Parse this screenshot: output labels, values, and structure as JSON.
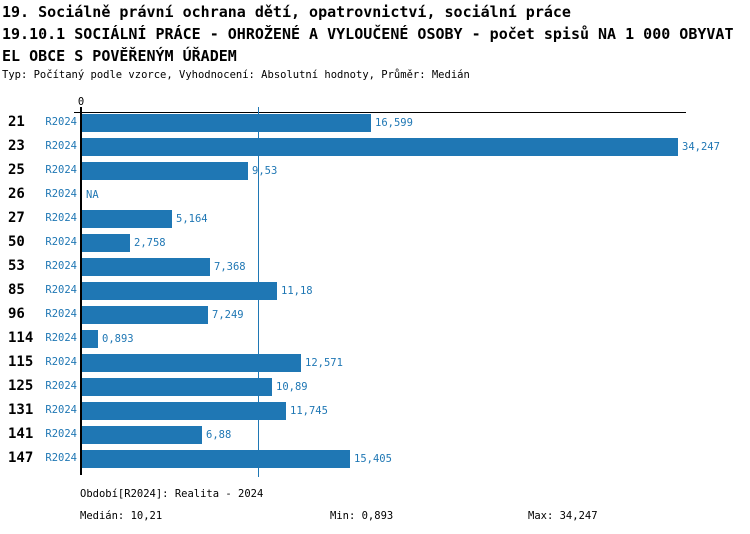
{
  "header": {
    "title_line1": "19. Sociálně právní ochrana dětí, opatrovnictví, sociální práce",
    "title_line2": "19.10.1 SOCIÁLNÍ PRÁCE - OHROŽENÉ A VYLOUČENÉ OSOBY - počet spisů NA 1 000 OBYVAT",
    "title_line3": "EL OBCE S POVĚŘENÝM ÚŘADEM",
    "subtitle": "Typ: Počítaný podle vzorce, Vyhodnocení: Absolutní hodnoty, Průměr: Medián"
  },
  "chart_data": {
    "type": "bar",
    "orientation": "horizontal",
    "title": "19.10.1 SOCIÁLNÍ PRÁCE - OHROŽENÉ A VYLOUČENÉ OSOBY - počet spisů NA 1 000 OBYVATEL OBCE S POVĚŘENÝM ÚŘADEM",
    "series_name": "R2024",
    "categories": [
      "21",
      "23",
      "25",
      "26",
      "27",
      "50",
      "53",
      "85",
      "96",
      "114",
      "115",
      "125",
      "131",
      "141",
      "147"
    ],
    "values": [
      16.599,
      34.247,
      9.53,
      null,
      5.164,
      2.758,
      7.368,
      11.18,
      7.249,
      0.893,
      12.571,
      10.89,
      11.745,
      6.88,
      15.405
    ],
    "value_labels": [
      "16,599",
      "34,247",
      "9,53",
      "NA",
      "5,164",
      "2,758",
      "7,368",
      "11,18",
      "7,249",
      "0,893",
      "12,571",
      "10,89",
      "11,745",
      "6,88",
      "15,405"
    ],
    "na_text": "NA",
    "x_axis": {
      "zero_label": "0",
      "min": 0,
      "max": 34.7,
      "grid": false
    },
    "median_reference": 10.21,
    "legend_position": "none",
    "colors": {
      "bar": "#1f77b4",
      "value_text": "#1f77b4",
      "category_text": "#000000",
      "median_line": "#1f77b4",
      "axis": "#000000"
    }
  },
  "footer": {
    "period": "Období[R2024]: Realita - 2024",
    "median": "Medián: 10,21",
    "min": "Min: 0,893",
    "max": "Max: 34,247"
  }
}
